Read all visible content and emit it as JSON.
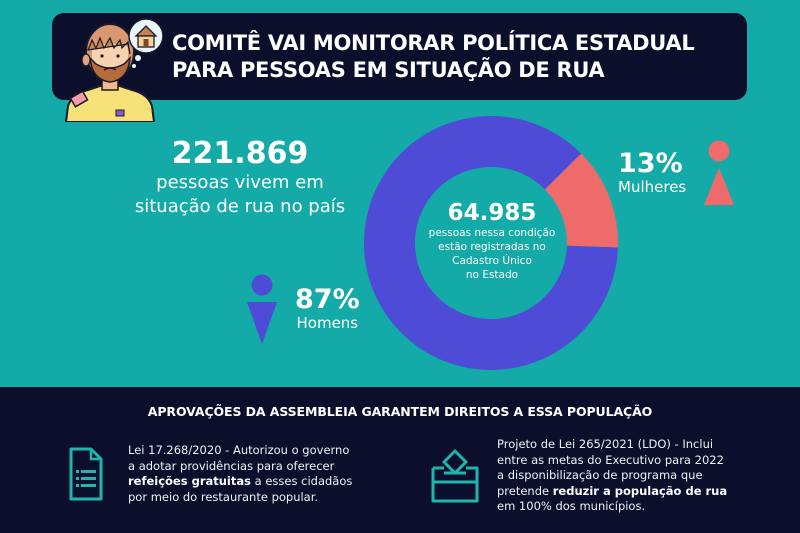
{
  "header": {
    "title_lines": [
      "COMITÊ VAI MONITORAR POLÍTICA ESTADUAL",
      "PARA PESSOAS EM SITUAÇÃO DE RUA"
    ],
    "avatar_icon": "homeless-person-thinking-house-icon"
  },
  "national_stat": {
    "value": "221.869",
    "line1": "pessoas vivem em",
    "line2": "situação de rua no país"
  },
  "chart_data": {
    "type": "pie",
    "variant": "donut",
    "title": "64.985",
    "center_text": [
      "pessoas nessa condição",
      "estão registradas no",
      "Cadastro Único",
      "no Estado"
    ],
    "categories": [
      "Homens",
      "Mulheres"
    ],
    "values": [
      87,
      13
    ],
    "unit": "%",
    "value_labels": [
      "87%",
      "13%"
    ],
    "colors": [
      "#4e4bd6",
      "#ef6b6b"
    ]
  },
  "bottom": {
    "title": "APROVAÇÕES DA ASSEMBLEIA GARANTEM DIREITOS A ESSA POPULAÇÃO",
    "law1": {
      "icon": "document-list-icon",
      "line1": "Lei 17.268/2020 - Autorizou o governo",
      "line2": "a adotar providências para oferecer",
      "line3_bold": "refeições gratuitas",
      "line3_rest": " a esses cidadãos",
      "line4": "por meio do restaurante popular."
    },
    "law2": {
      "icon": "ballot-box-icon",
      "line1": "Projeto de Lei 265/2021 (LDO) - Inclui",
      "line2": "entre as metas do Executivo para 2022",
      "line3": "a disponibilização de programa que",
      "line4_pre": "pretende ",
      "line4_bold": "reduzir a população de rua",
      "line5": "em 100% dos municípios."
    }
  },
  "colors": {
    "background": "#14aaa8",
    "dark": "#0c0f2c",
    "accent_icon": "#1fb5ad"
  }
}
